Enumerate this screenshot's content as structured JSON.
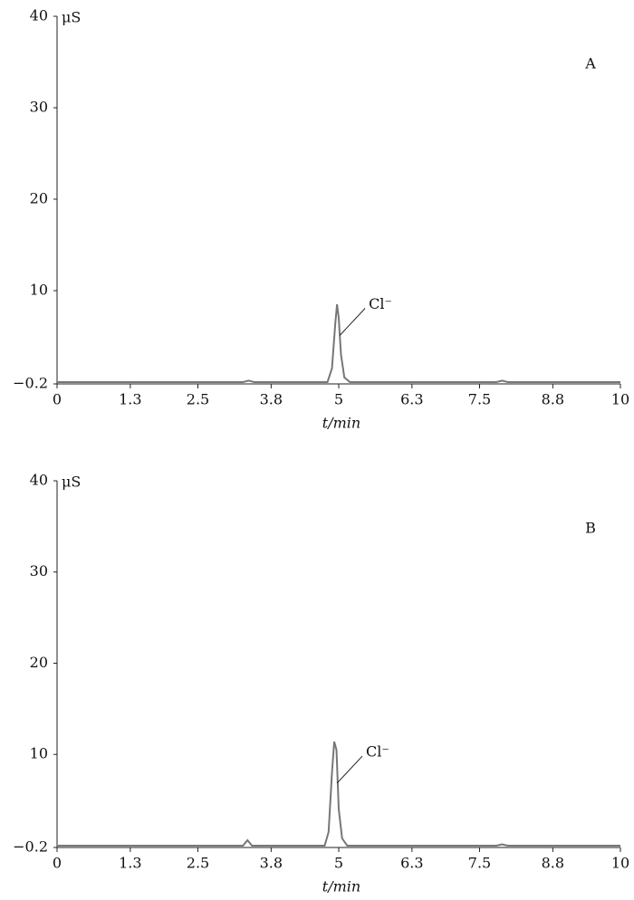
{
  "chart_data": [
    {
      "type": "line",
      "label": "A",
      "y_unit": "μS",
      "x_label": "t/min",
      "annotation": "Cl⁻",
      "color": "#777777",
      "x": [
        0,
        3.3,
        3.4,
        3.5,
        4.8,
        4.88,
        4.94,
        4.97,
        5.0,
        5.04,
        5.1,
        5.2,
        7.8,
        7.9,
        8.0,
        10
      ],
      "values": [
        0,
        0,
        0.15,
        0,
        0,
        1.5,
        6.5,
        8.5,
        7.0,
        3.0,
        0.5,
        0,
        0,
        0.15,
        0,
        0
      ],
      "xlim": [
        0,
        10
      ],
      "xticks": [
        0,
        1.3,
        2.5,
        3.8,
        5,
        6.3,
        7.5,
        8.8,
        10
      ],
      "ylim": [
        -0.2,
        40
      ],
      "yticks": [
        {
          "value": -0.2,
          "label": "−0.2"
        },
        10,
        20,
        30,
        40
      ]
    },
    {
      "type": "line",
      "label": "B",
      "y_unit": "μS",
      "x_label": "t/min",
      "annotation": "Cl⁻",
      "color": "#777777",
      "x": [
        0,
        3.3,
        3.38,
        3.46,
        4.75,
        4.82,
        4.88,
        4.92,
        4.96,
        5.0,
        5.06,
        5.15,
        7.8,
        7.9,
        8.0,
        10
      ],
      "values": [
        0,
        0,
        0.6,
        0,
        0,
        1.5,
        8.0,
        11.4,
        10.5,
        4.0,
        0.8,
        0,
        0,
        0.15,
        0,
        0
      ],
      "xlim": [
        0,
        10
      ],
      "xticks": [
        0,
        1.3,
        2.5,
        3.8,
        5,
        6.3,
        7.5,
        8.8,
        10
      ],
      "ylim": [
        -0.2,
        40
      ],
      "yticks": [
        {
          "value": -0.2,
          "label": "−0.2"
        },
        10,
        20,
        30,
        40
      ]
    }
  ]
}
